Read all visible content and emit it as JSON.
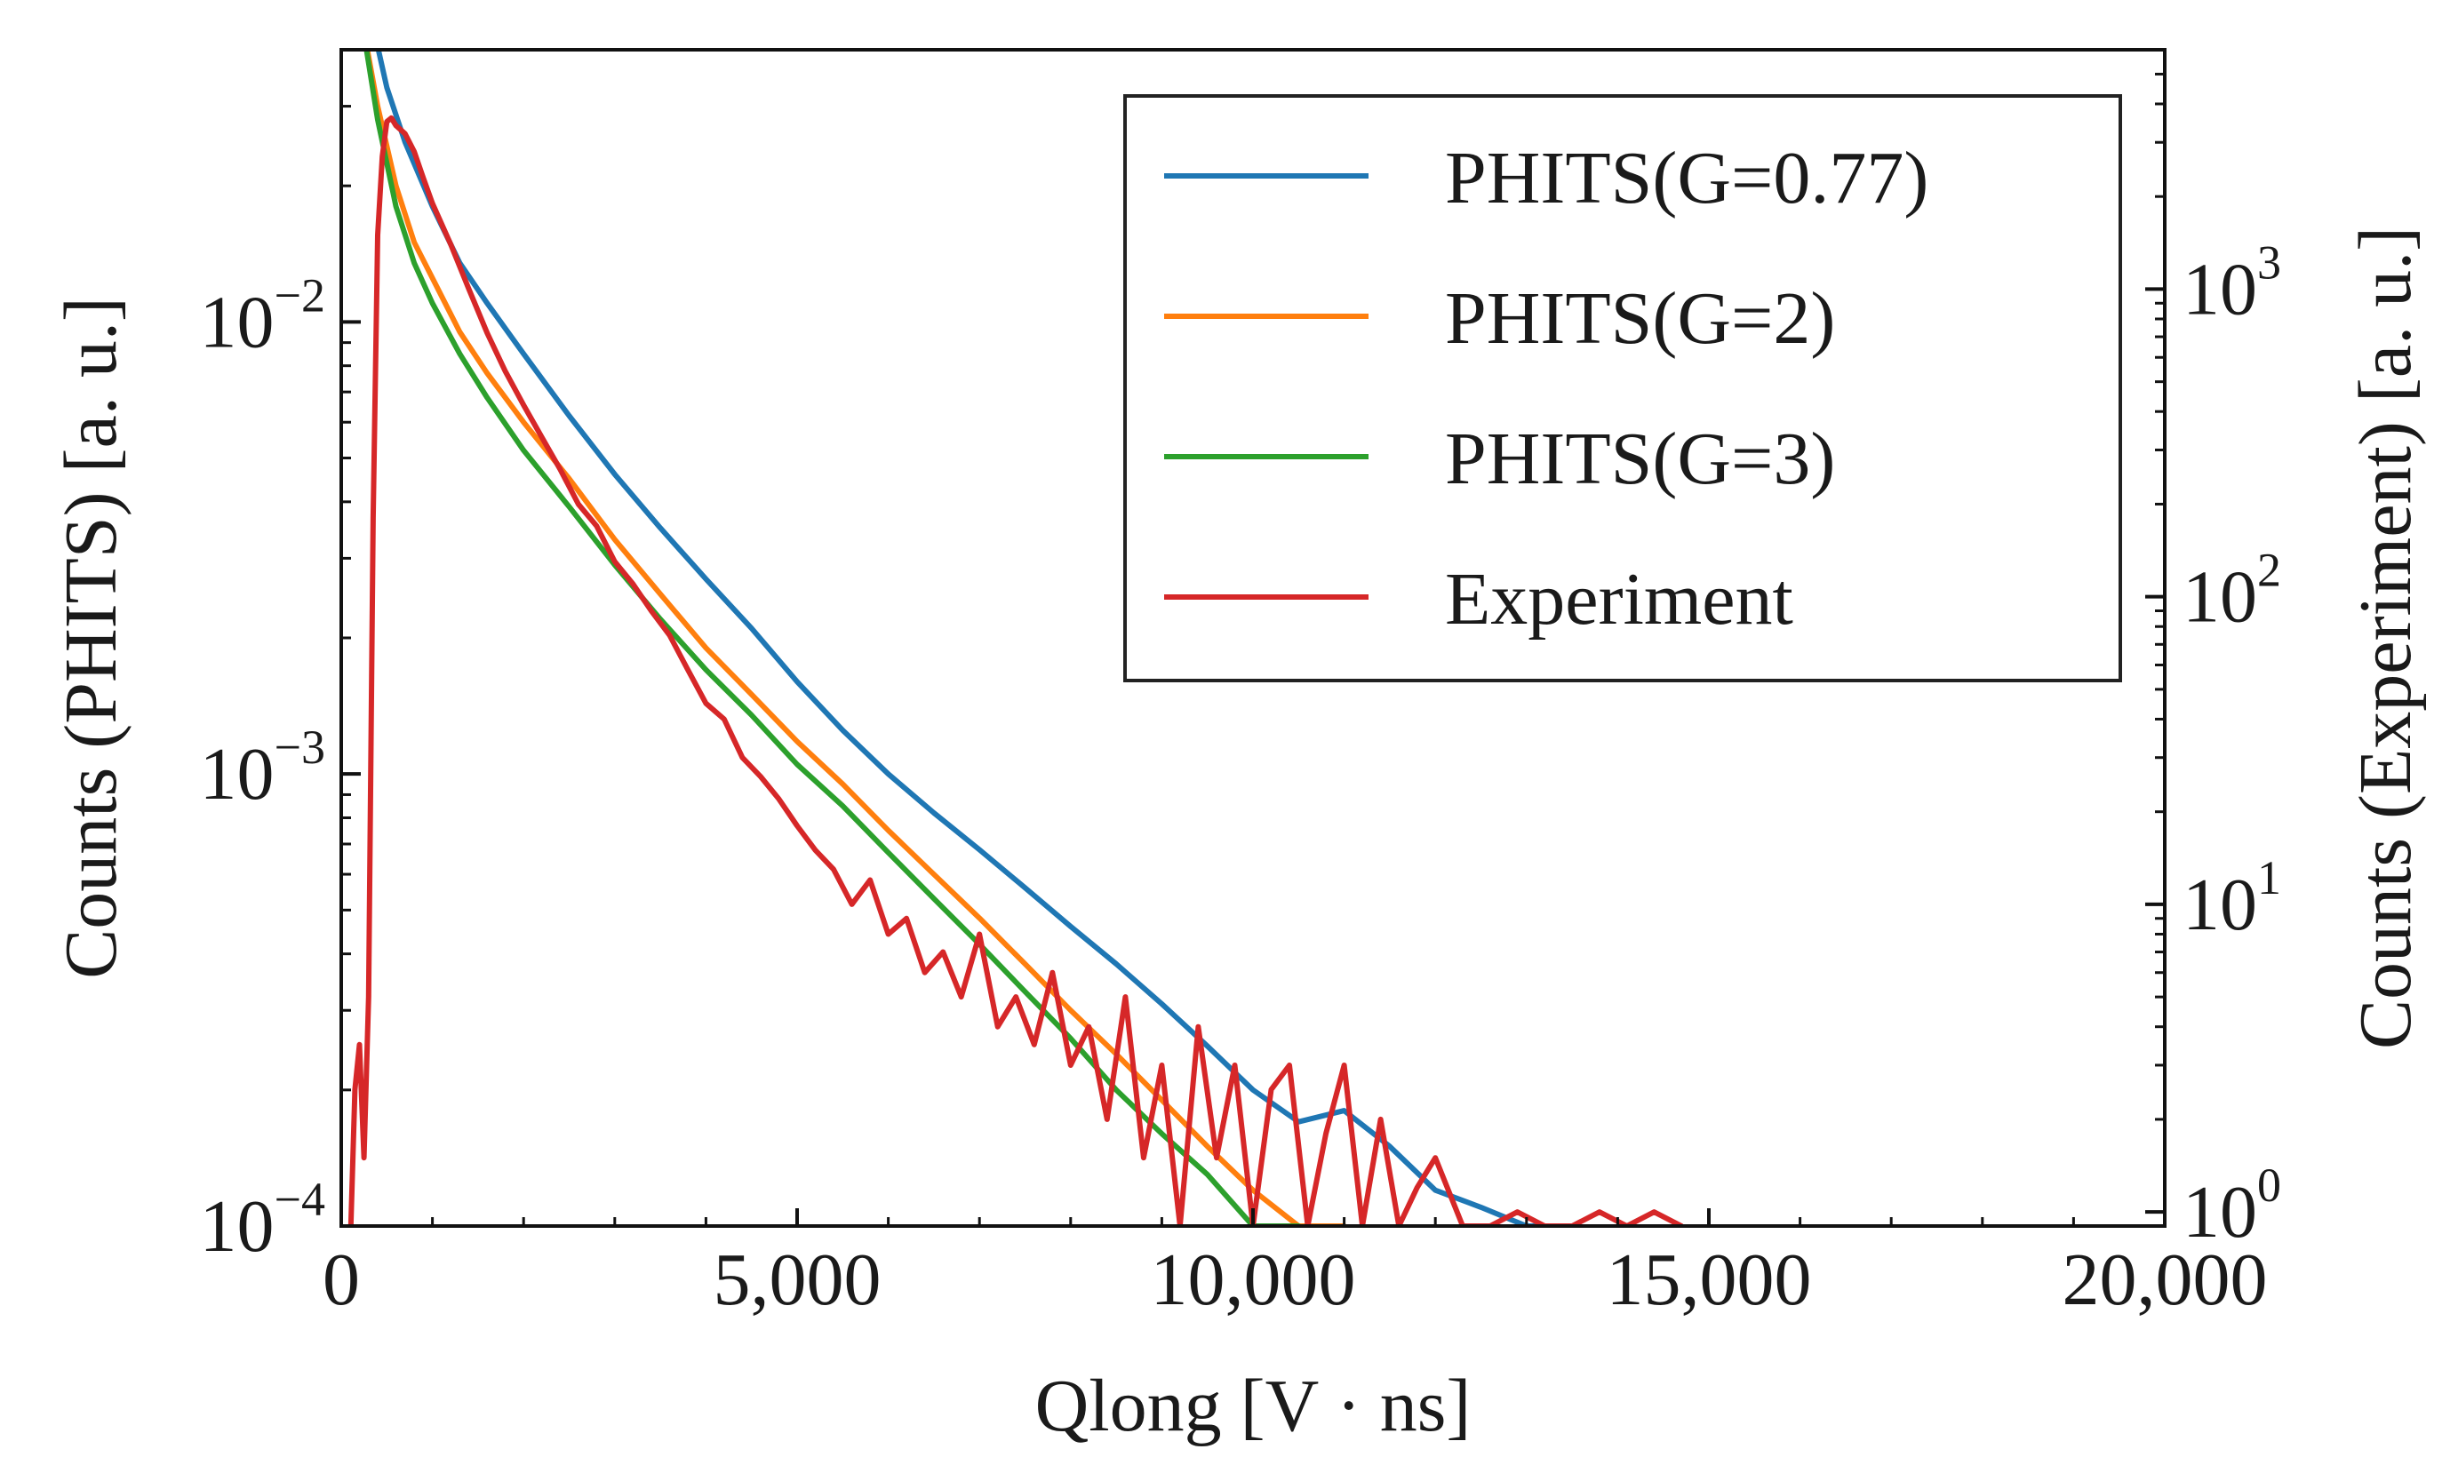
{
  "chart_data": {
    "type": "line",
    "xlabel": "Qlong [V · ns]",
    "ylabel_left": "Counts (PHITS) [a. u.]",
    "ylabel_right": "Counts (Experiment) [a. u.]",
    "x_range": [
      0,
      20000
    ],
    "y_left_scale": "log",
    "y_left_range": [
      0.0001,
      0.04
    ],
    "y_right_scale": "log",
    "y_right_range": [
      0.9,
      6000
    ],
    "x_ticks": [
      {
        "value": 0,
        "label": "0"
      },
      {
        "value": 5000,
        "label": "5,000"
      },
      {
        "value": 10000,
        "label": "10,000"
      },
      {
        "value": 15000,
        "label": "15,000"
      },
      {
        "value": 20000,
        "label": "20,000"
      }
    ],
    "y_left_ticks": [
      {
        "value": 0.01,
        "base": "10",
        "exp": "−2"
      },
      {
        "value": 0.001,
        "base": "10",
        "exp": "−3"
      },
      {
        "value": 0.0001,
        "base": "10",
        "exp": "−4"
      }
    ],
    "y_right_ticks": [
      {
        "value": 1,
        "base": "10",
        "exp": "0"
      },
      {
        "value": 10,
        "base": "10",
        "exp": "1"
      },
      {
        "value": 100,
        "base": "10",
        "exp": "2"
      },
      {
        "value": 1000,
        "base": "10",
        "exp": "3"
      }
    ],
    "grid": false,
    "legend_position": "top-right",
    "series": [
      {
        "name": "PHITS(G=0.77)",
        "color": "#1f77b4",
        "axis": "left",
        "x": [
          300,
          500,
          700,
          1000,
          1300,
          1600,
          2000,
          2500,
          3000,
          3500,
          4000,
          4500,
          5000,
          5500,
          6000,
          6500,
          7000,
          7500,
          8000,
          8500,
          9000,
          9500,
          10000,
          10500,
          11000,
          11500,
          12000,
          12500,
          13000,
          13400
        ],
        "y": [
          0.05,
          0.033,
          0.025,
          0.018,
          0.0135,
          0.011,
          0.0085,
          0.0062,
          0.0046,
          0.0035,
          0.0027,
          0.0021,
          0.0016,
          0.00125,
          0.001,
          0.00082,
          0.00068,
          0.00056,
          0.00046,
          0.00038,
          0.00031,
          0.00025,
          0.0002,
          0.00017,
          0.00018,
          0.00015,
          0.00012,
          0.00011,
          0.0001,
          0.0001
        ]
      },
      {
        "name": "PHITS(G=2)",
        "color": "#ff7f0e",
        "axis": "left",
        "x": [
          200,
          400,
          600,
          800,
          1000,
          1300,
          1600,
          2000,
          2500,
          3000,
          3500,
          4000,
          4500,
          5000,
          5500,
          6000,
          6500,
          7000,
          7500,
          8000,
          8500,
          9000,
          9500,
          10000,
          10500,
          11000
        ],
        "y": [
          0.05,
          0.03,
          0.02,
          0.015,
          0.0125,
          0.0095,
          0.0077,
          0.006,
          0.0045,
          0.0033,
          0.0025,
          0.0019,
          0.0015,
          0.00118,
          0.00095,
          0.00075,
          0.0006,
          0.00048,
          0.00038,
          0.0003,
          0.00024,
          0.00019,
          0.00015,
          0.00012,
          0.0001,
          0.0001
        ]
      },
      {
        "name": "PHITS(G=3)",
        "color": "#2ca02c",
        "axis": "left",
        "x": [
          200,
          400,
          600,
          800,
          1000,
          1300,
          1600,
          2000,
          2500,
          3000,
          3500,
          4000,
          4500,
          5000,
          5500,
          6000,
          6500,
          7000,
          7500,
          8000,
          8500,
          9000,
          9500,
          10000,
          10500
        ],
        "y": [
          0.05,
          0.028,
          0.018,
          0.0135,
          0.011,
          0.0085,
          0.0068,
          0.0052,
          0.0039,
          0.0029,
          0.0022,
          0.0017,
          0.00135,
          0.00105,
          0.00085,
          0.00067,
          0.00053,
          0.00042,
          0.00033,
          0.00026,
          0.0002,
          0.00016,
          0.00013,
          0.0001,
          0.0001
        ]
      },
      {
        "name": "Experiment",
        "color": "#d62728",
        "axis": "right",
        "x": [
          100,
          150,
          200,
          250,
          300,
          350,
          400,
          450,
          500,
          550,
          600,
          650,
          700,
          800,
          900,
          1000,
          1200,
          1400,
          1600,
          1800,
          2000,
          2200,
          2400,
          2600,
          2800,
          3000,
          3200,
          3400,
          3600,
          3800,
          4000,
          4200,
          4400,
          4600,
          4800,
          5000,
          5200,
          5400,
          5600,
          5800,
          6000,
          6200,
          6400,
          6600,
          6800,
          7000,
          7200,
          7400,
          7600,
          7800,
          8000,
          8200,
          8400,
          8600,
          8800,
          9000,
          9200,
          9400,
          9600,
          9800,
          10000,
          10200,
          10400,
          10600,
          10800,
          11000,
          11200,
          11400,
          11600,
          11800,
          12000,
          12300,
          12600,
          12900,
          13200,
          13500,
          13800,
          14100,
          14400,
          14700
        ],
        "y": [
          0.8,
          2.5,
          3.5,
          1.5,
          5,
          180,
          1500,
          2700,
          3500,
          3600,
          3400,
          3300,
          3200,
          2800,
          2300,
          1900,
          1400,
          1000,
          720,
          540,
          420,
          330,
          260,
          200,
          170,
          130,
          110,
          90,
          75,
          58,
          45,
          40,
          30,
          26,
          22,
          18,
          15,
          13,
          10,
          12,
          8,
          9,
          6,
          7,
          5,
          8,
          4,
          5,
          3.5,
          6,
          3,
          4,
          2,
          5,
          1.5,
          3,
          0.9,
          4,
          1.5,
          3,
          0.9,
          2.5,
          3,
          0.9,
          1.8,
          3,
          0.9,
          2,
          0.9,
          1.2,
          1.5,
          0.9,
          0.9,
          1.0,
          0.9,
          0.9,
          1.0,
          0.9,
          1.0,
          0.9
        ]
      }
    ]
  }
}
